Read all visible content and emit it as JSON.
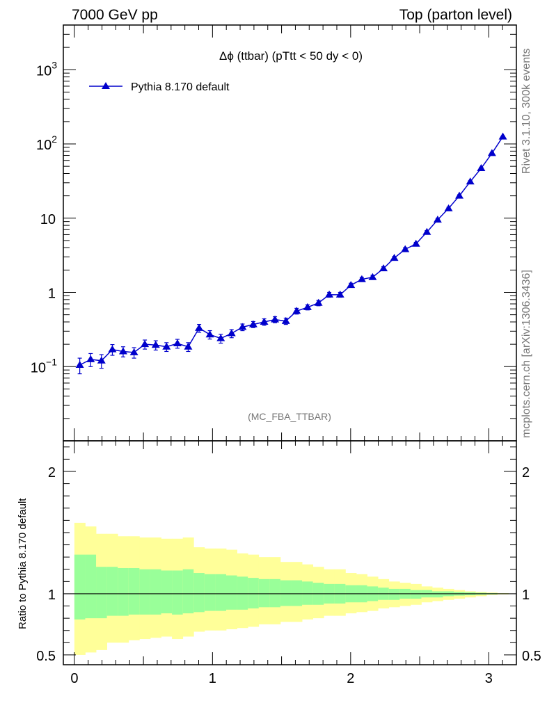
{
  "header": {
    "left": "7000 GeV pp",
    "right": "Top (parton level)"
  },
  "side": {
    "rivet": "Rivet 3.1.10,  300k events",
    "mcplots": "mcplots.cern.ch [arXiv:1306.3436]"
  },
  "chart_data": {
    "type": "line",
    "title": "Δϕ (ttbar) (pTtt < 50 dy < 0)",
    "analysis_label": "(MC_FBA_TTBAR)",
    "yscale": "log",
    "xlim": [
      -0.08,
      3.2
    ],
    "ylim": [
      0.01,
      4000
    ],
    "legend": {
      "placement": "top-left",
      "entries": [
        "Pythia 8.170 default"
      ]
    },
    "series": [
      {
        "name": "Pythia 8.170 default",
        "color": "#0000cc",
        "marker": "triangle-up",
        "x": [
          0.039,
          0.118,
          0.196,
          0.275,
          0.353,
          0.432,
          0.51,
          0.589,
          0.667,
          0.746,
          0.824,
          0.903,
          0.981,
          1.06,
          1.138,
          1.217,
          1.295,
          1.374,
          1.452,
          1.531,
          1.609,
          1.688,
          1.767,
          1.845,
          1.924,
          2.002,
          2.081,
          2.159,
          2.238,
          2.316,
          2.395,
          2.473,
          2.552,
          2.63,
          2.709,
          2.787,
          2.866,
          2.945,
          3.023,
          3.102
        ],
        "y": [
          0.105,
          0.125,
          0.12,
          0.17,
          0.16,
          0.155,
          0.2,
          0.195,
          0.185,
          0.205,
          0.185,
          0.33,
          0.27,
          0.24,
          0.28,
          0.34,
          0.37,
          0.4,
          0.43,
          0.41,
          0.56,
          0.63,
          0.72,
          0.93,
          0.93,
          1.25,
          1.5,
          1.6,
          2.1,
          2.9,
          3.8,
          4.5,
          6.5,
          9.5,
          13.5,
          20,
          31,
          47,
          75,
          125
        ],
        "yerr": [
          0.025,
          0.025,
          0.025,
          0.028,
          0.025,
          0.025,
          0.028,
          0.028,
          0.025,
          0.028,
          0.025,
          0.04,
          0.035,
          0.033,
          0.035,
          0.035,
          0.035,
          0.04,
          0.04,
          0.04,
          0.05,
          0.05,
          0.06,
          0.07,
          0.07,
          0.08,
          0.1,
          0.1,
          0.12,
          0.15,
          0.2,
          0.22,
          0.3,
          0.4,
          0.5,
          0.7,
          1,
          1.4,
          2,
          3
        ]
      }
    ],
    "yticks": [
      {
        "value": 0.1,
        "label": "10",
        "sup": "−1"
      },
      {
        "value": 1,
        "label": "1",
        "sup": ""
      },
      {
        "value": 10,
        "label": "10",
        "sup": ""
      },
      {
        "value": 100,
        "label": "10",
        "sup": "2"
      },
      {
        "value": 1000,
        "label": "10",
        "sup": "3"
      }
    ],
    "ratio": {
      "ylabel": "Ratio to Pythia 8.170 default",
      "ylim": [
        0.42,
        2.25
      ],
      "yticks": [
        0.5,
        1,
        2
      ],
      "xticks": [
        0,
        1,
        2,
        3
      ],
      "bin_edges": [
        0,
        0.0785,
        0.157,
        0.2355,
        0.314,
        0.3925,
        0.471,
        0.5495,
        0.628,
        0.7065,
        0.785,
        0.8635,
        0.942,
        1.0205,
        1.099,
        1.1775,
        1.256,
        1.3345,
        1.413,
        1.4915,
        1.57,
        1.6485,
        1.727,
        1.8055,
        1.884,
        1.9625,
        2.041,
        2.1195,
        2.198,
        2.2765,
        2.355,
        2.4335,
        2.512,
        2.5905,
        2.669,
        2.7475,
        2.826,
        2.9045,
        2.983,
        3.0615,
        3.14159
      ],
      "inner_up": [
        1.32,
        1.32,
        1.22,
        1.22,
        1.21,
        1.21,
        1.2,
        1.2,
        1.19,
        1.19,
        1.2,
        1.17,
        1.16,
        1.16,
        1.15,
        1.14,
        1.13,
        1.12,
        1.12,
        1.11,
        1.11,
        1.1,
        1.09,
        1.08,
        1.08,
        1.07,
        1.07,
        1.06,
        1.05,
        1.04,
        1.04,
        1.03,
        1.03,
        1.02,
        1.02,
        1.015,
        1.012,
        1.008,
        1.005,
        1.003
      ],
      "inner_dn": [
        0.79,
        0.8,
        0.8,
        0.82,
        0.82,
        0.83,
        0.83,
        0.83,
        0.84,
        0.83,
        0.84,
        0.85,
        0.86,
        0.86,
        0.87,
        0.87,
        0.88,
        0.89,
        0.89,
        0.9,
        0.9,
        0.91,
        0.91,
        0.92,
        0.92,
        0.93,
        0.93,
        0.94,
        0.95,
        0.95,
        0.96,
        0.96,
        0.97,
        0.97,
        0.98,
        0.985,
        0.988,
        0.992,
        0.995,
        0.997
      ],
      "outer_up": [
        1.58,
        1.55,
        1.49,
        1.49,
        1.47,
        1.47,
        1.46,
        1.46,
        1.45,
        1.45,
        1.46,
        1.38,
        1.37,
        1.37,
        1.36,
        1.33,
        1.32,
        1.3,
        1.3,
        1.26,
        1.26,
        1.24,
        1.22,
        1.2,
        1.2,
        1.17,
        1.16,
        1.14,
        1.12,
        1.1,
        1.09,
        1.08,
        1.06,
        1.05,
        1.04,
        1.03,
        1.02,
        1.015,
        1.01,
        1.005
      ],
      "outer_dn": [
        0.5,
        0.52,
        0.54,
        0.6,
        0.6,
        0.62,
        0.63,
        0.64,
        0.65,
        0.63,
        0.65,
        0.69,
        0.7,
        0.7,
        0.71,
        0.72,
        0.73,
        0.75,
        0.75,
        0.77,
        0.77,
        0.79,
        0.8,
        0.82,
        0.82,
        0.84,
        0.85,
        0.86,
        0.88,
        0.89,
        0.9,
        0.91,
        0.93,
        0.94,
        0.95,
        0.96,
        0.97,
        0.98,
        0.99,
        0.995
      ],
      "inner_color": "#99ff99",
      "outer_color": "#ffff99"
    }
  }
}
